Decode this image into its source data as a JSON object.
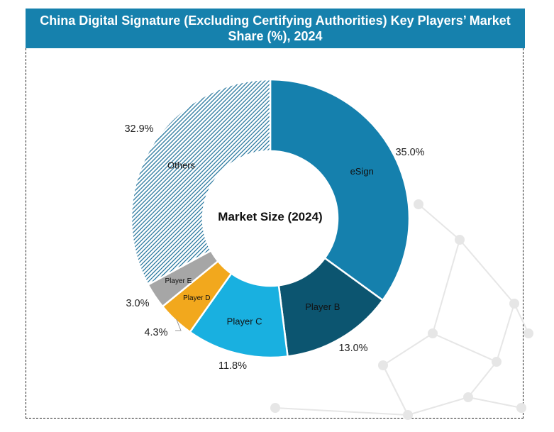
{
  "chart_data": {
    "type": "pie",
    "donut": true,
    "title": "China Digital Signature (Excluding Certifying Authorities) Key Players’ Market Share (%), 2024",
    "title_lines": [
      "China Digital Signature (Excluding Certifying Authorities) Key Players’ Market",
      "Share (%), 2024"
    ],
    "center_label": "Market Size (2024)",
    "categories": [
      "eSign",
      "Player B",
      "Player C",
      "Player D",
      "Player E",
      "Others"
    ],
    "values": [
      35.0,
      13.0,
      11.8,
      4.3,
      3.0,
      32.9
    ],
    "value_labels": [
      "35.0%",
      "13.0%",
      "11.8%",
      "4.3%",
      "3.0%",
      "32.9%"
    ],
    "colors": [
      "#1580ad",
      "#0c5570",
      "#19b0e0",
      "#f2a81d",
      "#a6a6a6",
      "#1a6e98"
    ],
    "hatched": [
      false,
      false,
      false,
      false,
      false,
      true
    ],
    "legend": "none"
  }
}
